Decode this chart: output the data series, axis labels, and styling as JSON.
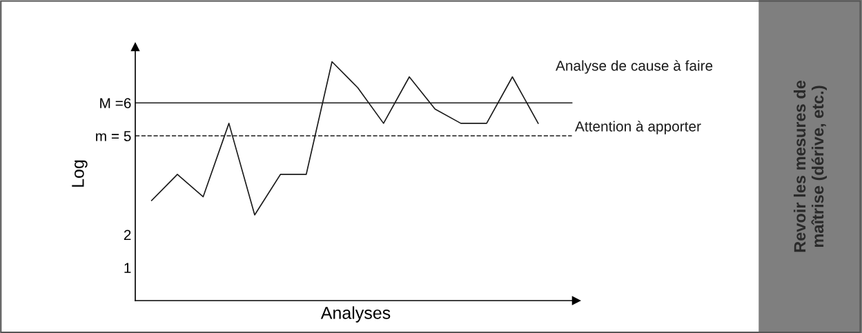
{
  "chart_data": {
    "type": "line",
    "xlabel": "Analyses",
    "ylabel": "Log",
    "categories": [
      null,
      null,
      null,
      null,
      null,
      null,
      null,
      null,
      null,
      null,
      null,
      null,
      null,
      null,
      null,
      null
    ],
    "series": [
      {
        "color": "#1a1a1a",
        "values": [
          3.04,
          3.83,
          3.15,
          5.38,
          2.6,
          3.83,
          3.83,
          7.25,
          6.46,
          5.38,
          6.79,
          5.81,
          5.38,
          5.38,
          6.79,
          5.38
        ]
      }
    ],
    "ylim": [
      0,
      7.7
    ],
    "yticks": [
      1,
      2,
      {
        "value": 5,
        "label": "m = 5"
      },
      {
        "value": 6,
        "label": "M =6"
      }
    ],
    "tick_labels": "y",
    "grid": false,
    "legend": false,
    "marker": "none",
    "line_style": "solid",
    "ref_lines": [
      {
        "axis": "y",
        "value": 6,
        "line_style": "solid",
        "color": "#1a1a1a"
      },
      {
        "axis": "y",
        "value": 5,
        "line_style": "dashed",
        "color": "#1a1a1a"
      }
    ],
    "annotations": [
      "Analyse de cause à faire",
      "Attention à apporter",
      "Revoir les mesures de maîtrise (dérive, etc.)"
    ]
  }
}
